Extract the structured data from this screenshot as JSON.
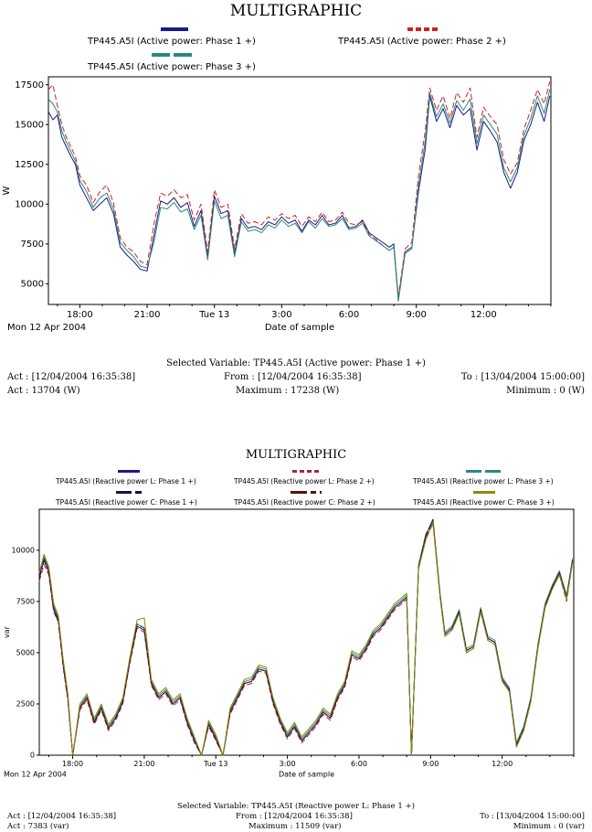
{
  "chart_data": [
    {
      "type": "line",
      "title": "MULTIGRAPHIC",
      "xlabel": "Date of sample",
      "ylabel": "W",
      "start_label": "Mon 12 Apr 2004",
      "x_ticks": [
        "18:00",
        "21:00",
        "Tue 13",
        "3:00",
        "6:00",
        "9:00",
        "12:00"
      ],
      "x_tick_hours": [
        18,
        21,
        24,
        27,
        30,
        33,
        36
      ],
      "x_range_hours": [
        16.6,
        39.0
      ],
      "ylim": [
        3700,
        18000
      ],
      "y_ticks": [
        5000,
        7500,
        10000,
        12500,
        15000,
        17500
      ],
      "y_tick_labels": [
        "5000",
        "7500",
        "10000",
        "12500",
        "15000",
        "17500"
      ],
      "grid": false,
      "legend_position": "top",
      "x": [
        16.6,
        16.8,
        17.0,
        17.2,
        17.4,
        17.6,
        17.8,
        18.0,
        18.3,
        18.6,
        18.9,
        19.2,
        19.5,
        19.8,
        20.1,
        20.4,
        20.7,
        21.0,
        21.3,
        21.6,
        21.9,
        22.2,
        22.5,
        22.8,
        23.1,
        23.4,
        23.7,
        24.0,
        24.3,
        24.6,
        24.9,
        25.2,
        25.5,
        25.8,
        26.1,
        26.4,
        26.7,
        27.0,
        27.3,
        27.6,
        27.9,
        28.2,
        28.5,
        28.8,
        29.1,
        29.4,
        29.7,
        30.0,
        30.3,
        30.6,
        30.9,
        31.2,
        31.5,
        31.8,
        32.0,
        32.2,
        32.5,
        32.8,
        33.1,
        33.4,
        33.6,
        33.9,
        34.2,
        34.5,
        34.8,
        35.1,
        35.4,
        35.7,
        36.0,
        36.3,
        36.6,
        36.9,
        37.2,
        37.5,
        37.8,
        38.1,
        38.4,
        38.7,
        38.95
      ],
      "series": [
        {
          "name": "TP445.A5I (Active power: Phase 1 +)",
          "color": "#1a1a8c",
          "dash": "solid",
          "values": [
            15800,
            15300,
            15600,
            14200,
            13600,
            13000,
            12500,
            11200,
            10400,
            9600,
            10000,
            10400,
            9400,
            7300,
            6800,
            6400,
            5900,
            5800,
            8000,
            10200,
            10000,
            10400,
            9800,
            10100,
            8600,
            9600,
            6700,
            10500,
            9400,
            9600,
            6900,
            9100,
            8500,
            8600,
            8400,
            8900,
            8700,
            9200,
            8800,
            9000,
            8300,
            9000,
            8700,
            9300,
            8700,
            8800,
            9300,
            8500,
            8600,
            9000,
            8200,
            7900,
            7600,
            7300,
            7500,
            4000,
            7000,
            7300,
            10800,
            13500,
            16800,
            15200,
            16000,
            14800,
            16200,
            15600,
            16000,
            13400,
            15200,
            14600,
            13900,
            12000,
            11000,
            12000,
            14000,
            15000,
            16400,
            15200,
            16800
          ]
        },
        {
          "name": "TP445.A5I (Active power: Phase 2 +)",
          "color": "#cc2222",
          "dash": "6,3",
          "values": [
            17200,
            17500,
            16200,
            15000,
            14200,
            13600,
            13000,
            11800,
            11200,
            10100,
            10800,
            11200,
            10100,
            7900,
            7300,
            7000,
            6400,
            6200,
            8700,
            10700,
            10500,
            10900,
            10400,
            10600,
            9000,
            10000,
            7000,
            10900,
            9800,
            10000,
            7200,
            9400,
            8800,
            8900,
            8700,
            9200,
            9000,
            9400,
            9100,
            9300,
            8600,
            9200,
            8900,
            9500,
            8900,
            9000,
            9500,
            8800,
            8700,
            8900,
            8100,
            7800,
            7400,
            7100,
            7300,
            4200,
            7200,
            7600,
            11800,
            14600,
            17300,
            15900,
            16800,
            15400,
            17000,
            16400,
            17300,
            14200,
            16100,
            15500,
            15000,
            12800,
            11900,
            12600,
            14700,
            15900,
            17200,
            16300,
            17700
          ]
        },
        {
          "name": "TP445.A5I (Active power: Phase 3 +)",
          "color": "#2a8a7a",
          "dash": "solid",
          "values": [
            16600,
            16300,
            15800,
            14600,
            13900,
            13300,
            12700,
            11500,
            10800,
            9800,
            10400,
            10700,
            9700,
            7600,
            7100,
            6700,
            6100,
            6000,
            7600,
            9800,
            9700,
            10100,
            9500,
            9700,
            8400,
            9300,
            6500,
            10200,
            9100,
            9300,
            6700,
            8900,
            8300,
            8400,
            8200,
            8700,
            8500,
            9000,
            8600,
            8800,
            8200,
            8900,
            8500,
            9100,
            8600,
            8700,
            9100,
            8400,
            8500,
            8800,
            8000,
            7700,
            7400,
            7100,
            7300,
            3900,
            6900,
            7200,
            11200,
            14000,
            17000,
            15500,
            16300,
            15100,
            16500,
            15900,
            16600,
            13800,
            15600,
            15000,
            14400,
            12300,
            11400,
            12300,
            14300,
            15400,
            16800,
            15700,
            17200
          ]
        }
      ]
    },
    {
      "type": "line",
      "title": "MULTIGRAPHIC",
      "xlabel": "Date of sample",
      "ylabel": "var",
      "start_label": "Mon 12 Apr 2004",
      "x_ticks": [
        "18:00",
        "21:00",
        "Tue 13",
        "3:00",
        "6:00",
        "9:00",
        "12:00"
      ],
      "x_tick_hours": [
        18,
        21,
        24,
        27,
        30,
        33,
        36
      ],
      "x_range_hours": [
        16.6,
        39.0
      ],
      "ylim": [
        0,
        12000
      ],
      "y_ticks": [
        0,
        2500,
        5000,
        7500,
        10000
      ],
      "y_tick_labels": [
        "0",
        "2500",
        "5000",
        "7500",
        "10000"
      ],
      "grid": false,
      "legend_position": "top",
      "x": [
        16.6,
        16.8,
        17.0,
        17.2,
        17.4,
        17.6,
        17.8,
        18.0,
        18.3,
        18.6,
        18.9,
        19.2,
        19.5,
        19.8,
        20.1,
        20.4,
        20.7,
        21.0,
        21.3,
        21.6,
        21.9,
        22.2,
        22.5,
        22.8,
        23.1,
        23.4,
        23.7,
        24.0,
        24.3,
        24.6,
        24.9,
        25.2,
        25.5,
        25.8,
        26.1,
        26.4,
        26.7,
        27.0,
        27.3,
        27.6,
        27.9,
        28.2,
        28.5,
        28.8,
        29.1,
        29.4,
        29.7,
        30.0,
        30.3,
        30.6,
        30.9,
        31.2,
        31.5,
        31.8,
        32.0,
        32.2,
        32.5,
        32.8,
        33.1,
        33.4,
        33.6,
        33.9,
        34.2,
        34.5,
        34.8,
        35.1,
        35.4,
        35.7,
        36.0,
        36.3,
        36.6,
        36.9,
        37.2,
        37.5,
        37.8,
        38.1,
        38.4,
        38.7,
        38.95
      ],
      "series": [
        {
          "name": "TP445.A5I (Reactive power L: Phase 1 +)",
          "color": "#1a1a8c",
          "dash": "solid",
          "values": [
            8800,
            9600,
            9000,
            7200,
            6600,
            4500,
            2800,
            0,
            2300,
            2800,
            1600,
            2300,
            1300,
            1800,
            2600,
            4600,
            6300,
            6100,
            3500,
            2800,
            3100,
            2500,
            2800,
            1600,
            700,
            0,
            1500,
            800,
            0,
            2100,
            2800,
            3500,
            3600,
            4200,
            4100,
            2600,
            1600,
            900,
            1400,
            700,
            1100,
            1500,
            2100,
            1800,
            2800,
            3400,
            4900,
            4700,
            5200,
            5900,
            6200,
            6700,
            7200,
            7500,
            7700,
            0,
            9200,
            10700,
            11500,
            7800,
            5900,
            6200,
            7000,
            5100,
            5300,
            7100,
            5700,
            5500,
            3700,
            3200,
            500,
            1300,
            2700,
            5300,
            7300,
            8200,
            8900,
            7700,
            9500
          ]
        },
        {
          "name": "TP445.A5I (Reactive power L: Phase 2 +)",
          "color": "#aa2244",
          "dash": "6,3",
          "values": [
            8500,
            9300,
            8800,
            7000,
            6500,
            4300,
            2700,
            0,
            2200,
            2700,
            1500,
            2200,
            1200,
            1700,
            2500,
            4500,
            6200,
            6000,
            3400,
            2700,
            3000,
            2400,
            2700,
            1500,
            600,
            0,
            1400,
            700,
            0,
            2000,
            2700,
            3400,
            3500,
            4100,
            4000,
            2500,
            1500,
            800,
            1300,
            600,
            1000,
            1400,
            2000,
            1700,
            2700,
            3300,
            4800,
            4600,
            5100,
            5800,
            6100,
            6600,
            7100,
            7400,
            7600,
            0,
            9100,
            10600,
            11400,
            7700,
            5800,
            6100,
            6900,
            5000,
            5200,
            7000,
            5600,
            5400,
            3600,
            3100,
            400,
            1200,
            2600,
            5200,
            7200,
            8100,
            8800,
            7500,
            9400
          ]
        },
        {
          "name": "TP445.A5I (Reactive power L: Phase 3 +)",
          "color": "#2a8a7a",
          "dash": "solid",
          "values": [
            8900,
            9700,
            9100,
            7300,
            6700,
            4600,
            2900,
            0,
            2400,
            2900,
            1700,
            2400,
            1400,
            1900,
            2700,
            4700,
            6400,
            6200,
            3600,
            2900,
            3200,
            2600,
            2900,
            1700,
            800,
            0,
            1600,
            900,
            0,
            2200,
            2900,
            3600,
            3700,
            4300,
            4200,
            2700,
            1700,
            1000,
            1500,
            800,
            1200,
            1600,
            2200,
            1900,
            2900,
            3500,
            5000,
            4800,
            5300,
            6000,
            6300,
            6800,
            7300,
            7600,
            7800,
            0,
            9300,
            10800,
            11400,
            7900,
            6000,
            6300,
            7100,
            5200,
            5400,
            7200,
            5800,
            5600,
            3800,
            3300,
            600,
            1400,
            2800,
            5400,
            7400,
            8300,
            9000,
            7800,
            9600
          ]
        },
        {
          "name": "TP445.A5I (Reactive power C: Phase 1 +)",
          "color": "#12124a",
          "dash": "8,3,2,3",
          "values": [
            8600,
            9500,
            8900,
            7100,
            6500,
            4400,
            2700,
            0,
            2300,
            2800,
            1600,
            2300,
            1300,
            1800,
            2600,
            4600,
            6400,
            6200,
            3500,
            2800,
            3100,
            2500,
            2800,
            1600,
            700,
            0,
            1500,
            800,
            0,
            2100,
            2800,
            3500,
            3600,
            4200,
            4100,
            2600,
            1600,
            900,
            1400,
            700,
            1100,
            1500,
            2100,
            1800,
            2800,
            3400,
            4900,
            4700,
            5200,
            5900,
            6200,
            6700,
            7200,
            7500,
            7700,
            0,
            9200,
            10700,
            11500,
            7800,
            5900,
            6200,
            7000,
            5100,
            5300,
            7100,
            5700,
            5500,
            3700,
            3200,
            500,
            1300,
            2700,
            5300,
            7300,
            8200,
            8900,
            7700,
            9500
          ]
        },
        {
          "name": "TP445.A5I (Reactive power C: Phase 2 +)",
          "color": "#5a1010",
          "dash": "8,3,2,3",
          "values": [
            8700,
            9500,
            8900,
            7100,
            6600,
            4500,
            2800,
            0,
            2300,
            2800,
            1600,
            2300,
            1300,
            1800,
            2600,
            4600,
            6300,
            6100,
            3500,
            2800,
            3100,
            2500,
            2800,
            1600,
            700,
            0,
            1500,
            800,
            0,
            2100,
            2800,
            3500,
            3600,
            4200,
            4100,
            2600,
            1600,
            900,
            1400,
            700,
            1100,
            1500,
            2100,
            1800,
            2800,
            3400,
            4900,
            4700,
            5200,
            5900,
            6200,
            6700,
            7200,
            7500,
            7700,
            0,
            9200,
            10700,
            11500,
            7800,
            5900,
            6200,
            7000,
            5100,
            5300,
            7100,
            5700,
            5500,
            3700,
            3200,
            500,
            1300,
            2700,
            5300,
            7300,
            8200,
            8900,
            7700,
            9500
          ]
        },
        {
          "name": "TP445.A5I (Reactive power C: Phase 3 +)",
          "color": "#8a8a10",
          "dash": "solid",
          "values": [
            8900,
            9800,
            9200,
            7400,
            6800,
            4700,
            3000,
            0,
            2500,
            3000,
            1800,
            2500,
            1500,
            2000,
            2800,
            4800,
            6600,
            6700,
            3700,
            3000,
            3300,
            2700,
            3000,
            1800,
            900,
            0,
            1700,
            1000,
            0,
            2300,
            3000,
            3700,
            3800,
            4400,
            4300,
            2800,
            1800,
            1100,
            1600,
            900,
            1300,
            1700,
            2300,
            2000,
            3000,
            3600,
            5100,
            4900,
            5400,
            6100,
            6400,
            6900,
            7400,
            7700,
            7900,
            0,
            9100,
            10500,
            11300,
            7700,
            5800,
            6100,
            6900,
            5000,
            5200,
            7000,
            5600,
            5400,
            3600,
            3100,
            400,
            1200,
            2600,
            5200,
            7200,
            8100,
            8800,
            7600,
            9400
          ]
        }
      ]
    }
  ],
  "info_top": {
    "selected": "Selected Variable: TP445.A5I (Active power: Phase 1 +)",
    "act_time": "Act : [12/04/2004 16:35:38]",
    "from": "From : [12/04/2004 16:35:38]",
    "to": "To : [13/04/2004 15:00:00]",
    "act_value": "Act : 13704 (W)",
    "maximum": "Maximum : 17238 (W)",
    "minimum": "Minimum : 0 (W)"
  },
  "info_bottom": {
    "selected": "Selected Variable: TP445.A5I (Reactive power L: Phase 1 +)",
    "act_time": "Act : [12/04/2004 16:35:38]",
    "from": "From : [12/04/2004 16:35:38]",
    "to": "To : [13/04/2004 15:00:00]",
    "act_value": "Act : 7383 (var)",
    "maximum": "Maximum : 11509 (var)",
    "minimum": "Minimum : 0 (var)"
  }
}
